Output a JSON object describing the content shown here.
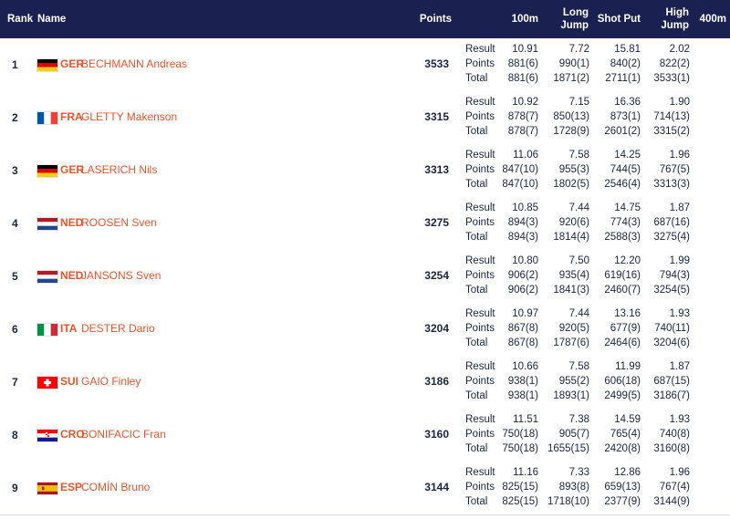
{
  "headers": {
    "rank": "Rank",
    "name": "Name",
    "points": "Points",
    "e1": "100m",
    "e2a": "Long",
    "e2b": "Jump",
    "e3": "Shot Put",
    "e4a": "High",
    "e4b": "Jump",
    "e5": "400m"
  },
  "labels": [
    "Result",
    "Points",
    "Total"
  ],
  "athletes": [
    {
      "rank": "1",
      "flag": "GER",
      "noc": "GER",
      "name": "BECHMANN Andreas",
      "points": "3533",
      "e1": [
        "10.91",
        "881(6)",
        "881(6)"
      ],
      "e2": [
        "7.72",
        "990(1)",
        "1871(2)"
      ],
      "e3": [
        "15.81",
        "840(2)",
        "2711(1)"
      ],
      "e4": [
        "2.02",
        "822(2)",
        "3533(1)"
      ]
    },
    {
      "rank": "2",
      "flag": "FRA",
      "noc": "FRA",
      "name": "GLETTY Makenson",
      "points": "3315",
      "e1": [
        "10.92",
        "878(7)",
        "878(7)"
      ],
      "e2": [
        "7.15",
        "850(13)",
        "1728(9)"
      ],
      "e3": [
        "16.36",
        "873(1)",
        "2601(2)"
      ],
      "e4": [
        "1.90",
        "714(13)",
        "3315(2)"
      ]
    },
    {
      "rank": "3",
      "flag": "GER",
      "noc": "GER",
      "name": "LASERICH Nils",
      "points": "3313",
      "e1": [
        "11.06",
        "847(10)",
        "847(10)"
      ],
      "e2": [
        "7.58",
        "955(3)",
        "1802(5)"
      ],
      "e3": [
        "14.25",
        "744(5)",
        "2546(4)"
      ],
      "e4": [
        "1.96",
        "767(5)",
        "3313(3)"
      ]
    },
    {
      "rank": "4",
      "flag": "NED",
      "noc": "NED",
      "name": "ROOSEN Sven",
      "points": "3275",
      "e1": [
        "10.85",
        "894(3)",
        "894(3)"
      ],
      "e2": [
        "7.44",
        "920(6)",
        "1814(4)"
      ],
      "e3": [
        "14.75",
        "774(3)",
        "2588(3)"
      ],
      "e4": [
        "1.87",
        "687(16)",
        "3275(4)"
      ]
    },
    {
      "rank": "5",
      "flag": "NED",
      "noc": "NED",
      "name": "JANSONS Sven",
      "points": "3254",
      "e1": [
        "10.80",
        "906(2)",
        "906(2)"
      ],
      "e2": [
        "7.50",
        "935(4)",
        "1841(3)"
      ],
      "e3": [
        "12.20",
        "619(16)",
        "2460(7)"
      ],
      "e4": [
        "1.99",
        "794(3)",
        "3254(5)"
      ]
    },
    {
      "rank": "6",
      "flag": "ITA",
      "noc": "ITA",
      "name": "DESTER Dario",
      "points": "3204",
      "e1": [
        "10.97",
        "867(8)",
        "867(8)"
      ],
      "e2": [
        "7.44",
        "920(5)",
        "1787(6)"
      ],
      "e3": [
        "13.16",
        "677(9)",
        "2464(6)"
      ],
      "e4": [
        "1.93",
        "740(11)",
        "3204(6)"
      ]
    },
    {
      "rank": "7",
      "flag": "SUI",
      "noc": "SUI",
      "name": "GAIO Finley",
      "points": "3186",
      "e1": [
        "10.66",
        "938(1)",
        "938(1)"
      ],
      "e2": [
        "7.58",
        "955(2)",
        "1893(1)"
      ],
      "e3": [
        "11.99",
        "606(18)",
        "2499(5)"
      ],
      "e4": [
        "1.87",
        "687(15)",
        "3186(7)"
      ]
    },
    {
      "rank": "8",
      "flag": "CRO",
      "noc": "CRO",
      "name": "BONIFACIC Fran",
      "points": "3160",
      "e1": [
        "11.51",
        "750(18)",
        "750(18)"
      ],
      "e2": [
        "7.38",
        "905(7)",
        "1655(15)"
      ],
      "e3": [
        "14.59",
        "765(4)",
        "2420(8)"
      ],
      "e4": [
        "1.93",
        "740(8)",
        "3160(8)"
      ]
    },
    {
      "rank": "9",
      "flag": "ESP",
      "noc": "ESP",
      "name": "COMÍN Bruno",
      "points": "3144",
      "e1": [
        "11.16",
        "825(15)",
        "825(15)"
      ],
      "e2": [
        "7.33",
        "893(8)",
        "1718(10)"
      ],
      "e3": [
        "12.86",
        "659(13)",
        "2377(9)"
      ],
      "e4": [
        "1.96",
        "767(4)",
        "3144(9)"
      ]
    }
  ],
  "colors": {
    "header_bg": "#1a2150",
    "accent": "#e8542c",
    "text": "#1b2340",
    "divider": "#dde0e6"
  }
}
